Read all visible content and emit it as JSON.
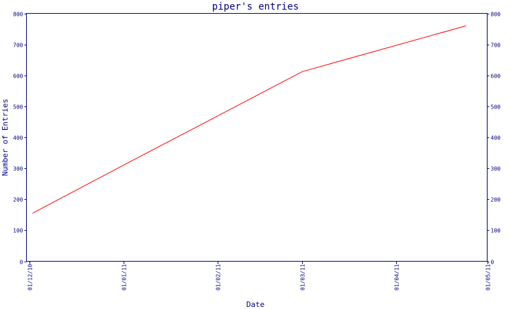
{
  "chart_data": {
    "type": "line",
    "title": "piper's entries",
    "xlabel": "Date",
    "ylabel": "Number of Entries",
    "x_ticks": [
      "01/12/10",
      "01/01/11",
      "01/02/11",
      "01/03/11",
      "01/04/11",
      "01/05/11"
    ],
    "ylim": [
      0,
      800
    ],
    "y_ticks": [
      "0",
      "100",
      "200",
      "300",
      "400",
      "500",
      "600",
      "700",
      "800"
    ],
    "grid": false,
    "series": [
      {
        "color": "#ff0000",
        "points": [
          {
            "x": "2010-12-02",
            "y": 155
          },
          {
            "x": "2011-01-01",
            "y": 310
          },
          {
            "x": "2011-03-01",
            "y": 612
          },
          {
            "x": "2011-04-24",
            "y": 760
          }
        ]
      }
    ]
  }
}
